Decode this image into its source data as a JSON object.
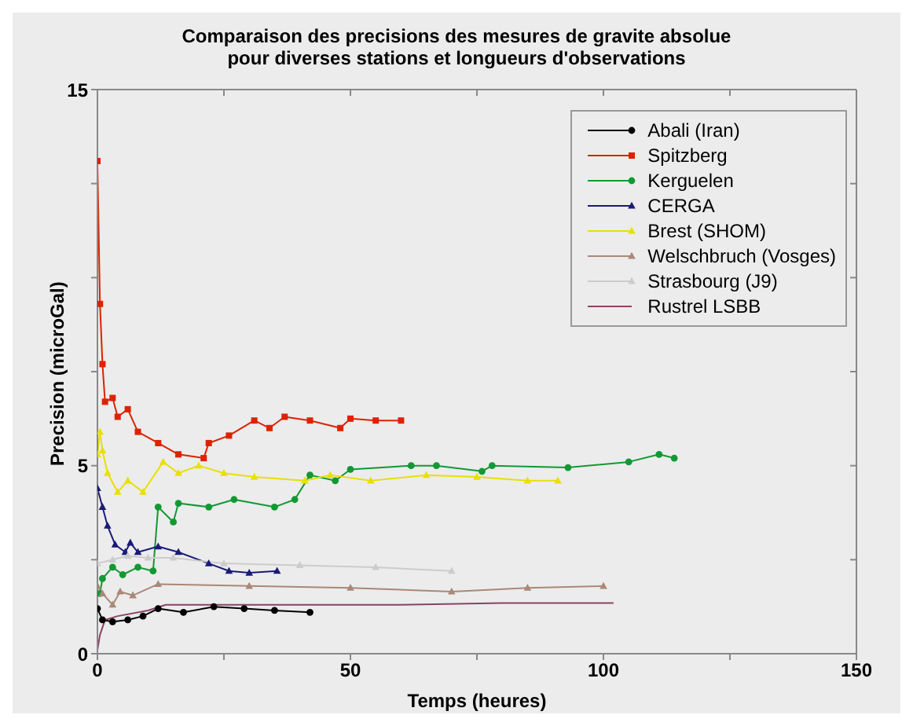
{
  "chart_data": {
    "type": "line",
    "title": "Comparaison des precisions des mesures de gravite absolue\npour diverses stations et longueurs d'observations",
    "xlabel": "Temps (heures)",
    "ylabel": "Precision (microGal)",
    "xlim": [
      0,
      150
    ],
    "xticks": [
      0,
      {
        "value": 25,
        "label": null
      },
      50,
      {
        "value": 75,
        "label": null
      },
      100,
      {
        "value": 125,
        "label": null
      },
      150
    ],
    "ylim": [
      0,
      15
    ],
    "yticks": [
      0,
      {
        "value": 2.5,
        "label": null
      },
      5,
      {
        "value": 7.5,
        "label": null
      },
      {
        "value": 10,
        "label": null
      },
      {
        "value": 12.5,
        "label": null
      },
      15
    ],
    "legend": "top right",
    "series": [
      {
        "name": "Abali (Iran)",
        "color": "#000000",
        "marker": "circle",
        "x": [
          0,
          1,
          3,
          6,
          9,
          12,
          17,
          23,
          29,
          35,
          42
        ],
        "values": [
          1.2,
          0.9,
          0.85,
          0.9,
          1.0,
          1.2,
          1.1,
          1.25,
          1.2,
          1.15,
          1.1
        ]
      },
      {
        "name": "Spitzberg",
        "color": "#dd2200",
        "marker": "square",
        "x": [
          0,
          0.5,
          1,
          1.5,
          3,
          4,
          6,
          8,
          12,
          16,
          21,
          22,
          26,
          31,
          34,
          37,
          42,
          48,
          50,
          55,
          60
        ],
        "values": [
          13.1,
          9.3,
          7.7,
          6.7,
          6.8,
          6.3,
          6.5,
          5.9,
          5.6,
          5.3,
          5.2,
          5.6,
          5.8,
          6.2,
          6.0,
          6.3,
          6.2,
          6.0,
          6.25,
          6.2,
          6.2
        ]
      },
      {
        "name": "Kerguelen",
        "color": "#119933",
        "marker": "circle",
        "x": [
          0.5,
          1,
          3,
          5,
          8,
          11,
          12,
          15,
          16,
          22,
          27,
          35,
          39,
          42,
          47,
          50,
          62,
          67,
          76,
          78,
          93,
          105,
          111,
          114
        ],
        "values": [
          1.6,
          2.0,
          2.3,
          2.1,
          2.3,
          2.2,
          3.9,
          3.5,
          4.0,
          3.9,
          4.1,
          3.9,
          4.1,
          4.75,
          4.6,
          4.9,
          5.0,
          5.0,
          4.85,
          5.0,
          4.95,
          5.1,
          5.3,
          5.2
        ]
      },
      {
        "name": "CERGA",
        "color": "#1a1a77",
        "marker": "triangle",
        "x": [
          0,
          1,
          2,
          3.5,
          5.5,
          6.5,
          8,
          12,
          16,
          22,
          26,
          30,
          35.5
        ],
        "values": [
          4.4,
          3.9,
          3.4,
          2.9,
          2.7,
          2.95,
          2.7,
          2.85,
          2.7,
          2.4,
          2.2,
          2.15,
          2.2
        ]
      },
      {
        "name": "Brest (SHOM)",
        "color": "#e8e000",
        "marker": "triangle",
        "x": [
          0,
          0.5,
          1,
          2,
          4,
          6,
          9,
          13,
          16,
          20,
          25,
          31,
          41,
          46,
          54,
          65,
          75,
          85,
          91
        ],
        "values": [
          5.3,
          5.9,
          5.4,
          4.8,
          4.3,
          4.6,
          4.3,
          5.1,
          4.8,
          5.0,
          4.8,
          4.7,
          4.6,
          4.75,
          4.6,
          4.75,
          4.7,
          4.6,
          4.6
        ]
      },
      {
        "name": "Welschbruch (Vosges)",
        "color": "#aa8877",
        "marker": "triangle",
        "x": [
          0,
          1,
          3,
          4.5,
          7,
          12,
          30,
          50,
          70,
          85,
          100
        ],
        "values": [
          1.8,
          1.6,
          1.3,
          1.65,
          1.55,
          1.85,
          1.8,
          1.75,
          1.65,
          1.75,
          1.8
        ]
      },
      {
        "name": "Strasbourg (J9)",
        "color": "#cccccc",
        "marker": "triangle",
        "x": [
          0,
          3,
          6,
          10,
          15,
          25,
          40,
          55,
          70
        ],
        "values": [
          2.4,
          2.5,
          2.6,
          2.55,
          2.55,
          2.4,
          2.35,
          2.3,
          2.2
        ]
      },
      {
        "name": "Rustrel LSBB",
        "color": "#884466",
        "marker": "none",
        "x": [
          0,
          0.5,
          1.5,
          4,
          10,
          13.5,
          30,
          60,
          80,
          102
        ],
        "values": [
          0.1,
          0.5,
          0.9,
          1.0,
          1.15,
          1.3,
          1.3,
          1.3,
          1.35,
          1.35
        ]
      }
    ]
  }
}
